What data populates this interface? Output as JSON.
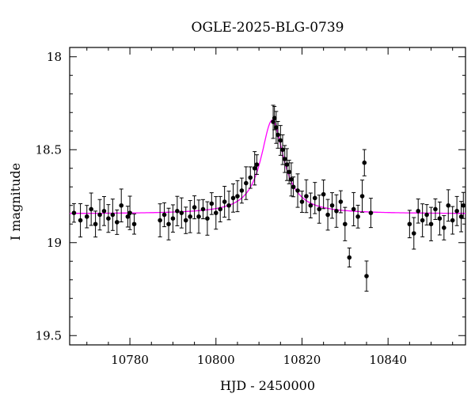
{
  "chart_data": {
    "type": "scatter",
    "title": "OGLE-2025-BLG-0739",
    "xlabel": "HJD - 2450000",
    "ylabel": "I magnitude",
    "xlim": [
      10766,
      10858
    ],
    "ylim": [
      19.55,
      17.95
    ],
    "y_inverted": true,
    "grid": false,
    "x_ticks": [
      10780,
      10800,
      10820,
      10840
    ],
    "x_tick_labels": [
      "10780",
      "10800",
      "10820",
      "10840"
    ],
    "y_ticks": [
      18,
      18.5,
      19,
      19.5
    ],
    "y_tick_labels": [
      "18",
      "18.5",
      "19",
      "19.5"
    ],
    "model": {
      "t0": 10813.1,
      "baseline_mag": 18.845,
      "peak_mag": 18.34,
      "tE": 3.2,
      "color": "#ff00ff"
    },
    "points_color": "#000000",
    "series": [
      {
        "x": [
          10767.0,
          10768.5,
          10770.0,
          10771.0,
          10772.0,
          10773.0,
          10774.0,
          10775.0,
          10776.0,
          10777.0,
          10778.0,
          10779.5,
          10780.0,
          10781.0,
          10787.0,
          10788.0,
          10789.0,
          10790.0,
          10791.0,
          10792.0,
          10793.0,
          10794.0,
          10795.0,
          10796.0,
          10797.0,
          10798.0,
          10799.0,
          10800.0,
          10801.0,
          10802.0,
          10803.0,
          10804.0,
          10805.0,
          10806.0,
          10807.0,
          10808.0,
          10809.0,
          10809.5,
          10813.3,
          10813.6,
          10814.0,
          10814.4,
          10815.0,
          10815.5,
          10816.0,
          10816.5,
          10817.0,
          10817.5,
          10818.0,
          10819.0,
          10820.0,
          10821.0,
          10822.0,
          10823.0,
          10824.0,
          10825.0,
          10826.0,
          10827.0,
          10828.0,
          10829.0,
          10830.0,
          10831.0,
          10832.0,
          10833.0,
          10834.0,
          10834.5,
          10835.0,
          10836.0,
          10845.0,
          10846.0,
          10847.0,
          10848.0,
          10849.0,
          10850.0,
          10851.0,
          10852.0,
          10853.0,
          10854.0,
          10855.0,
          10856.0,
          10857.0,
          10857.5
        ],
        "y": [
          18.84,
          18.88,
          18.86,
          18.82,
          18.9,
          18.85,
          18.83,
          18.87,
          18.85,
          18.89,
          18.8,
          18.86,
          18.84,
          18.9,
          18.88,
          18.85,
          18.9,
          18.87,
          18.83,
          18.84,
          18.88,
          18.86,
          18.81,
          18.86,
          18.82,
          18.87,
          18.79,
          18.84,
          18.82,
          18.78,
          18.8,
          18.76,
          18.75,
          18.72,
          18.68,
          18.65,
          18.6,
          18.58,
          18.35,
          18.33,
          18.38,
          18.42,
          18.45,
          18.5,
          18.55,
          18.58,
          18.62,
          18.66,
          18.7,
          18.72,
          18.78,
          18.75,
          18.8,
          18.76,
          18.82,
          18.74,
          18.85,
          18.8,
          18.83,
          18.78,
          18.9,
          19.08,
          18.82,
          18.86,
          18.75,
          18.57,
          19.18,
          18.84,
          18.9,
          18.95,
          18.83,
          18.88,
          18.85,
          18.9,
          18.82,
          18.87,
          18.92,
          18.8,
          18.88,
          18.83,
          18.86,
          18.8
        ]
      }
    ]
  }
}
